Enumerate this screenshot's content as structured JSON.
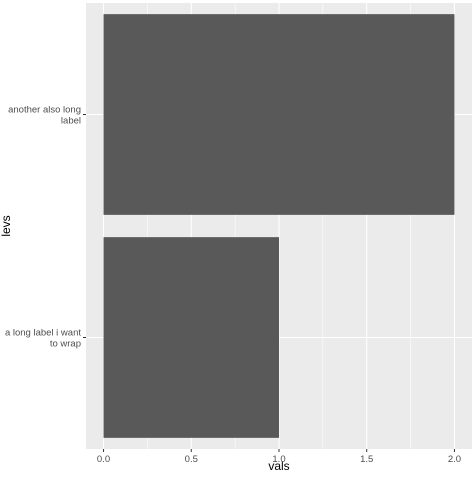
{
  "chart_data": {
    "type": "bar",
    "orientation": "horizontal",
    "categories": [
      [
        "another also long",
        "label"
      ],
      [
        "a long label i want",
        "to wrap"
      ]
    ],
    "values": [
      2,
      1
    ],
    "xlabel": "vals",
    "ylabel": "levs",
    "xlim": [
      -0.1,
      2.1
    ],
    "xticks": [
      0.0,
      0.5,
      1.0,
      1.5,
      2.0
    ],
    "xtick_labels": [
      "0.0",
      "0.5",
      "1.0",
      "1.5",
      "2.0"
    ],
    "grid": true,
    "legend": "none",
    "colors": {
      "panel": "#ebebeb",
      "grid_major": "#ffffff",
      "bar": "#595959",
      "tick_text": "#4d4d4d",
      "tick_mark": "#333333"
    }
  }
}
